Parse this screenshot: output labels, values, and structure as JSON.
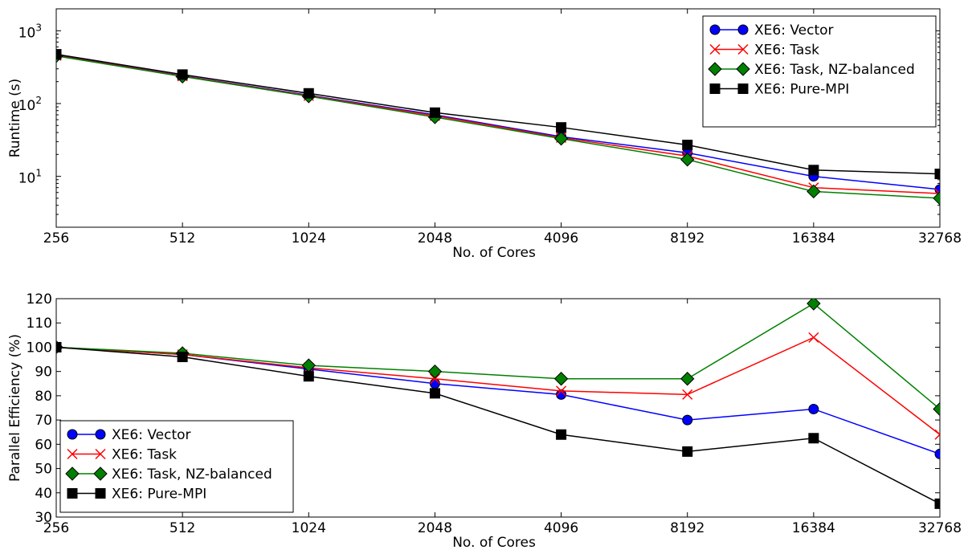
{
  "chart_data": [
    {
      "type": "line",
      "xscale": "log2",
      "yscale": "log10",
      "x": [
        256,
        512,
        1024,
        2048,
        4096,
        8192,
        16384,
        32768
      ],
      "x_tick_labels": [
        "256",
        "512",
        "1024",
        "2048",
        "4096",
        "8192",
        "16384",
        "32768"
      ],
      "y_ticks": [
        {
          "value": 10,
          "base": "10",
          "exp": "1"
        },
        {
          "value": 100,
          "base": "10",
          "exp": "2"
        },
        {
          "value": 1000,
          "base": "10",
          "exp": "3"
        }
      ],
      "ylim": [
        2,
        2000
      ],
      "xlabel": "No. of Cores",
      "ylabel": "Runtime (s)",
      "legend_position": "top-right",
      "series": [
        {
          "name": "XE6: Vector",
          "color": "#0000ff",
          "marker": "circle",
          "values": [
            460,
            240,
            130,
            70,
            35,
            21,
            10,
            6.6
          ]
        },
        {
          "name": "XE6: Task",
          "color": "#ff0000",
          "marker": "x",
          "values": [
            455,
            238,
            128,
            68,
            34,
            19,
            7,
            5.8
          ]
        },
        {
          "name": "XE6: Task, NZ-balanced",
          "color": "#008000",
          "marker": "diamond",
          "values": [
            450,
            235,
            126,
            65,
            33,
            17,
            6.2,
            5.0
          ]
        },
        {
          "name": "XE6: Pure-MPI",
          "color": "#000000",
          "marker": "square",
          "values": [
            475,
            250,
            138,
            75,
            47,
            27,
            12.2,
            10.8
          ]
        }
      ]
    },
    {
      "type": "line",
      "xscale": "log2",
      "yscale": "linear",
      "x": [
        256,
        512,
        1024,
        2048,
        4096,
        8192,
        16384,
        32768
      ],
      "x_tick_labels": [
        "256",
        "512",
        "1024",
        "2048",
        "4096",
        "8192",
        "16384",
        "32768"
      ],
      "y_ticks": [
        30,
        40,
        50,
        60,
        70,
        80,
        90,
        100,
        110,
        120
      ],
      "ylim": [
        30,
        120
      ],
      "xlabel": "No. of Cores",
      "ylabel": "Parallel Efficiency (%)",
      "legend_position": "bottom-left",
      "series": [
        {
          "name": "XE6: Vector",
          "color": "#0000ff",
          "marker": "circle",
          "values": [
            100,
            97,
            91,
            85,
            80.5,
            70,
            74.5,
            56
          ]
        },
        {
          "name": "XE6: Task",
          "color": "#ff0000",
          "marker": "x",
          "values": [
            100,
            97,
            91.5,
            87,
            82,
            80.5,
            104,
            64
          ]
        },
        {
          "name": "XE6: Task, NZ-balanced",
          "color": "#008000",
          "marker": "diamond",
          "values": [
            100,
            97.5,
            92.5,
            90,
            87,
            87,
            118,
            74.5
          ]
        },
        {
          "name": "XE6: Pure-MPI",
          "color": "#000000",
          "marker": "square",
          "values": [
            100,
            96,
            88,
            81,
            64,
            57,
            62.5,
            35.5
          ]
        }
      ]
    }
  ]
}
